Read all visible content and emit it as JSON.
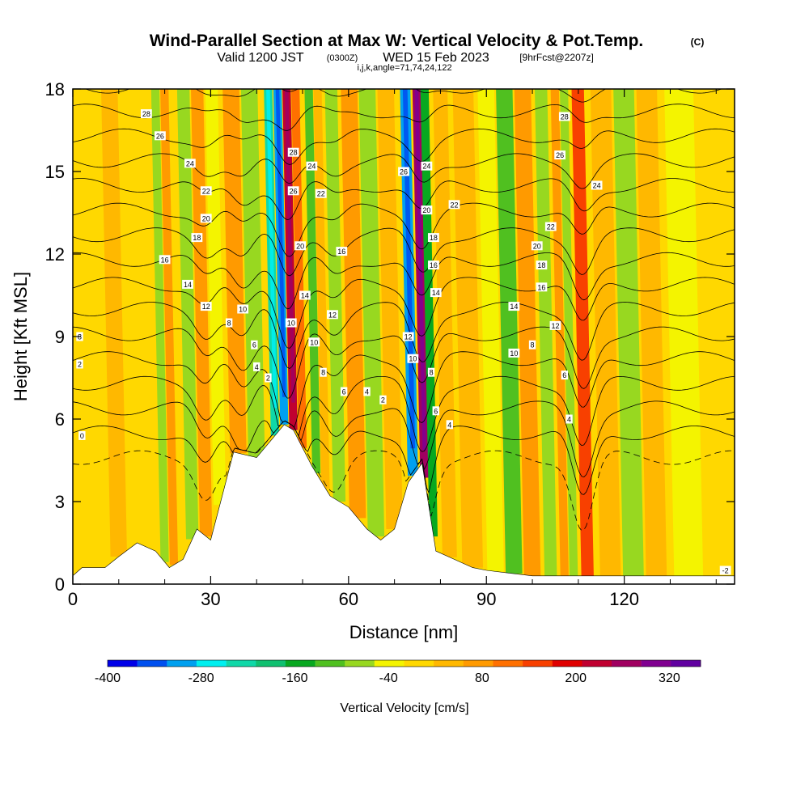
{
  "header": {
    "title": "Wind-Parallel Section at Max W: Vertical Velocity & Pot.Temp.",
    "copyright": "(C)",
    "valid_prefix": "Valid 1200 JST",
    "zulu": "(0300Z)",
    "valid_date": "WED 15 Feb 2023",
    "forecast": "[9hrFcst@2207z]",
    "indices": "i,j,k,angle=71,74,24,122"
  },
  "chart_data": {
    "type": "heatmap",
    "xlabel": "Distance [nm]",
    "ylabel": "Height [Kft MSL]",
    "xlim": [
      0,
      144
    ],
    "ylim": [
      0,
      18
    ],
    "x_ticks": [
      "0",
      "30",
      "60",
      "90",
      "120"
    ],
    "y_ticks": [
      "0",
      "3",
      "6",
      "9",
      "12",
      "15",
      "18"
    ],
    "terrain": {
      "x": [
        0,
        2,
        7,
        10,
        14,
        18,
        21,
        24,
        27,
        30,
        35,
        40,
        43,
        46,
        48,
        52,
        56,
        60,
        64,
        67,
        70,
        73,
        76,
        79,
        83,
        87,
        90,
        95,
        100,
        144
      ],
      "height": [
        0.3,
        0.6,
        0.6,
        1.0,
        1.5,
        1.2,
        0.6,
        0.9,
        2.0,
        1.6,
        4.8,
        4.6,
        5.2,
        5.8,
        5.6,
        4.3,
        3.2,
        2.8,
        2.0,
        1.6,
        2.0,
        3.7,
        4.4,
        1.2,
        0.9,
        0.6,
        0.5,
        0.4,
        0.3,
        0.3
      ]
    },
    "w_bands": [
      {
        "x": 10,
        "w": 40
      },
      {
        "x": 14,
        "w": 10
      },
      {
        "x": 20,
        "w": -60
      },
      {
        "x": 22,
        "w": 90
      },
      {
        "x": 26,
        "w": -80
      },
      {
        "x": 29,
        "w": 100
      },
      {
        "x": 32,
        "w": -40
      },
      {
        "x": 36,
        "w": 90
      },
      {
        "x": 40,
        "w": -60
      },
      {
        "x": 44,
        "w": -240
      },
      {
        "x": 46,
        "w": -320
      },
      {
        "x": 48,
        "w": 260
      },
      {
        "x": 50,
        "w": 140
      },
      {
        "x": 53,
        "w": -120
      },
      {
        "x": 55,
        "w": 60
      },
      {
        "x": 58,
        "w": -80
      },
      {
        "x": 62,
        "w": 80
      },
      {
        "x": 66,
        "w": -60
      },
      {
        "x": 70,
        "w": 60
      },
      {
        "x": 74,
        "w": -300
      },
      {
        "x": 76.5,
        "w": 300
      },
      {
        "x": 78.5,
        "w": -160
      },
      {
        "x": 82,
        "w": 40
      },
      {
        "x": 87,
        "w": 60
      },
      {
        "x": 92,
        "w": -20
      },
      {
        "x": 96,
        "w": -100
      },
      {
        "x": 100,
        "w": 80
      },
      {
        "x": 104,
        "w": -60
      },
      {
        "x": 107,
        "w": 100
      },
      {
        "x": 109,
        "w": -60
      },
      {
        "x": 112,
        "w": 160
      },
      {
        "x": 117,
        "w": 60
      },
      {
        "x": 122,
        "w": -80
      },
      {
        "x": 127,
        "w": 60
      },
      {
        "x": 134,
        "w": -40
      }
    ],
    "theta_contours": {
      "levels": [
        -2,
        0,
        2,
        4,
        6,
        8,
        10,
        12,
        14,
        16,
        18,
        20,
        22,
        24,
        26,
        28
      ],
      "labels": [
        {
          "x": 2,
          "y": 5.4,
          "text": "0"
        },
        {
          "x": 1.5,
          "y": 8.0,
          "text": "2"
        },
        {
          "x": 1.5,
          "y": 9.0,
          "text": "8"
        },
        {
          "x": 42.5,
          "y": 7.5,
          "text": "2"
        },
        {
          "x": 40,
          "y": 7.9,
          "text": "4"
        },
        {
          "x": 39.5,
          "y": 8.7,
          "text": "6"
        },
        {
          "x": 34,
          "y": 9.5,
          "text": "8"
        },
        {
          "x": 37,
          "y": 10.0,
          "text": "10"
        },
        {
          "x": 29,
          "y": 10.1,
          "text": "12"
        },
        {
          "x": 25,
          "y": 10.9,
          "text": "14"
        },
        {
          "x": 20,
          "y": 11.8,
          "text": "16"
        },
        {
          "x": 27,
          "y": 12.6,
          "text": "18"
        },
        {
          "x": 29,
          "y": 13.3,
          "text": "20"
        },
        {
          "x": 29,
          "y": 14.3,
          "text": "22"
        },
        {
          "x": 25.5,
          "y": 15.3,
          "text": "24"
        },
        {
          "x": 19,
          "y": 16.3,
          "text": "26"
        },
        {
          "x": 16,
          "y": 17.1,
          "text": "28"
        },
        {
          "x": 48,
          "y": 15.7,
          "text": "28"
        },
        {
          "x": 48,
          "y": 14.3,
          "text": "26"
        },
        {
          "x": 52,
          "y": 15.2,
          "text": "24"
        },
        {
          "x": 54,
          "y": 14.2,
          "text": "22"
        },
        {
          "x": 49.5,
          "y": 12.3,
          "text": "20"
        },
        {
          "x": 50.5,
          "y": 10.5,
          "text": "14"
        },
        {
          "x": 47.5,
          "y": 9.5,
          "text": "10"
        },
        {
          "x": 52.5,
          "y": 8.8,
          "text": "10"
        },
        {
          "x": 54.5,
          "y": 7.7,
          "text": "8"
        },
        {
          "x": 56.5,
          "y": 9.8,
          "text": "12"
        },
        {
          "x": 58.5,
          "y": 12.1,
          "text": "16"
        },
        {
          "x": 59,
          "y": 7.0,
          "text": "6"
        },
        {
          "x": 64,
          "y": 7.0,
          "text": "4"
        },
        {
          "x": 67.5,
          "y": 6.7,
          "text": "2"
        },
        {
          "x": 72,
          "y": 15.0,
          "text": "26"
        },
        {
          "x": 77,
          "y": 15.2,
          "text": "24"
        },
        {
          "x": 83,
          "y": 13.8,
          "text": "22"
        },
        {
          "x": 77,
          "y": 13.6,
          "text": "20"
        },
        {
          "x": 78.5,
          "y": 12.6,
          "text": "18"
        },
        {
          "x": 78.5,
          "y": 11.6,
          "text": "16"
        },
        {
          "x": 79,
          "y": 10.6,
          "text": "14"
        },
        {
          "x": 73,
          "y": 9.0,
          "text": "12"
        },
        {
          "x": 74,
          "y": 8.2,
          "text": "10"
        },
        {
          "x": 78,
          "y": 7.7,
          "text": "8"
        },
        {
          "x": 79,
          "y": 6.3,
          "text": "6"
        },
        {
          "x": 82,
          "y": 5.8,
          "text": "4"
        },
        {
          "x": 107,
          "y": 17.0,
          "text": "28"
        },
        {
          "x": 106,
          "y": 15.6,
          "text": "26"
        },
        {
          "x": 114,
          "y": 14.5,
          "text": "24"
        },
        {
          "x": 104,
          "y": 13.0,
          "text": "22"
        },
        {
          "x": 101,
          "y": 12.3,
          "text": "20"
        },
        {
          "x": 102,
          "y": 11.6,
          "text": "18"
        },
        {
          "x": 102,
          "y": 10.8,
          "text": "16"
        },
        {
          "x": 96,
          "y": 10.1,
          "text": "14"
        },
        {
          "x": 105,
          "y": 9.4,
          "text": "12"
        },
        {
          "x": 96,
          "y": 8.4,
          "text": "10"
        },
        {
          "x": 100,
          "y": 8.7,
          "text": "8"
        },
        {
          "x": 107,
          "y": 7.6,
          "text": "6"
        },
        {
          "x": 108,
          "y": 6.0,
          "text": "4"
        },
        {
          "x": 142,
          "y": 0.5,
          "text": "-2"
        }
      ]
    },
    "colorbar": {
      "label": "Vertical Velocity [cm/s]",
      "tick_labels": [
        "-400",
        "-280",
        "-160",
        "-40",
        "80",
        "200",
        "320"
      ],
      "colors": [
        "#0000e8",
        "#0050f0",
        "#00a0f0",
        "#00f0f0",
        "#10d8a8",
        "#10c070",
        "#08a820",
        "#50c020",
        "#98d820",
        "#f4f400",
        "#ffd800",
        "#ffb800",
        "#ff9a00",
        "#ff7000",
        "#f84000",
        "#e00000",
        "#c00030",
        "#a00060",
        "#800090",
        "#6000a0"
      ],
      "range": [
        -400,
        360
      ],
      "step": 40
    }
  }
}
